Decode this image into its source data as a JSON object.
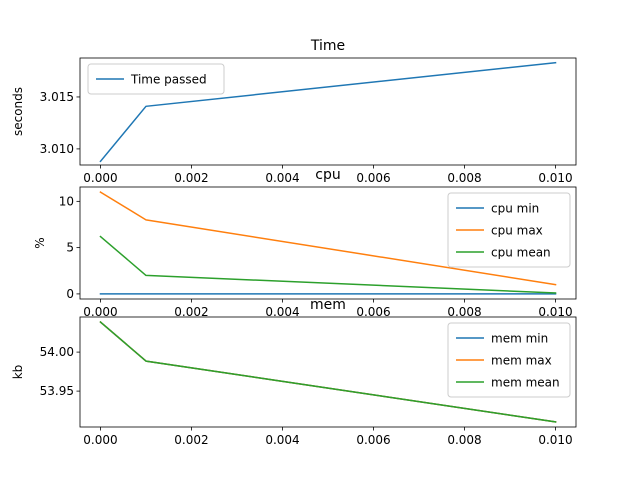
{
  "chart_data": [
    {
      "type": "line",
      "title": "Time",
      "xlabel": "",
      "ylabel": "seconds",
      "x": [
        0.0,
        0.001,
        0.01
      ],
      "xlim": [
        -0.00045,
        0.01045
      ],
      "ylim": [
        3.00845,
        3.01875
      ],
      "xticks": [
        0.0,
        0.002,
        0.004,
        0.006,
        0.008,
        0.01
      ],
      "xtick_labels": [
        "0.000",
        "0.002",
        "0.004",
        "0.006",
        "0.008",
        "0.010"
      ],
      "yticks": [
        3.01,
        3.015
      ],
      "ytick_labels": [
        "3.010",
        "3.015"
      ],
      "legend": "upper left",
      "grid": false,
      "series": [
        {
          "name": "Time passed",
          "color": "#1f77b4",
          "values": [
            3.0088,
            3.0141,
            3.0183
          ]
        }
      ]
    },
    {
      "type": "line",
      "title": "cpu",
      "xlabel": "",
      "ylabel": "%",
      "x": [
        0.0,
        0.001,
        0.01
      ],
      "xlim": [
        -0.00045,
        0.01045
      ],
      "ylim": [
        -0.55,
        11.55
      ],
      "xticks": [
        0.0,
        0.002,
        0.004,
        0.006,
        0.008,
        0.01
      ],
      "xtick_labels": [
        "0.000",
        "0.002",
        "0.004",
        "0.006",
        "0.008",
        "0.010"
      ],
      "yticks": [
        0,
        5,
        10
      ],
      "ytick_labels": [
        "0",
        "5",
        "10"
      ],
      "legend": "upper right",
      "grid": false,
      "series": [
        {
          "name": "cpu min",
          "color": "#1f77b4",
          "values": [
            0.0,
            0.0,
            0.0
          ]
        },
        {
          "name": "cpu max",
          "color": "#ff7f0e",
          "values": [
            11.0,
            8.0,
            1.0
          ]
        },
        {
          "name": "cpu mean",
          "color": "#2ca02c",
          "values": [
            6.2,
            2.0,
            0.1
          ]
        }
      ]
    },
    {
      "type": "line",
      "title": "mem",
      "xlabel": "",
      "ylabel": "kb",
      "x": [
        0.0,
        0.001,
        0.01
      ],
      "xlim": [
        -0.00045,
        0.01045
      ],
      "ylim": [
        53.904,
        54.045
      ],
      "xticks": [
        0.0,
        0.002,
        0.004,
        0.006,
        0.008,
        0.01
      ],
      "xtick_labels": [
        "0.000",
        "0.002",
        "0.004",
        "0.006",
        "0.008",
        "0.010"
      ],
      "yticks": [
        53.95,
        54.0
      ],
      "ytick_labels": [
        "53.95",
        "54.00"
      ],
      "legend": "upper right",
      "grid": false,
      "series": [
        {
          "name": "mem min",
          "color": "#1f77b4",
          "values": [
            54.0385,
            53.9885,
            53.9105
          ]
        },
        {
          "name": "mem max",
          "color": "#ff7f0e",
          "values": [
            54.0385,
            53.9885,
            53.9105
          ]
        },
        {
          "name": "mem mean",
          "color": "#2ca02c",
          "values": [
            54.0385,
            53.9885,
            53.9105
          ]
        }
      ]
    }
  ]
}
